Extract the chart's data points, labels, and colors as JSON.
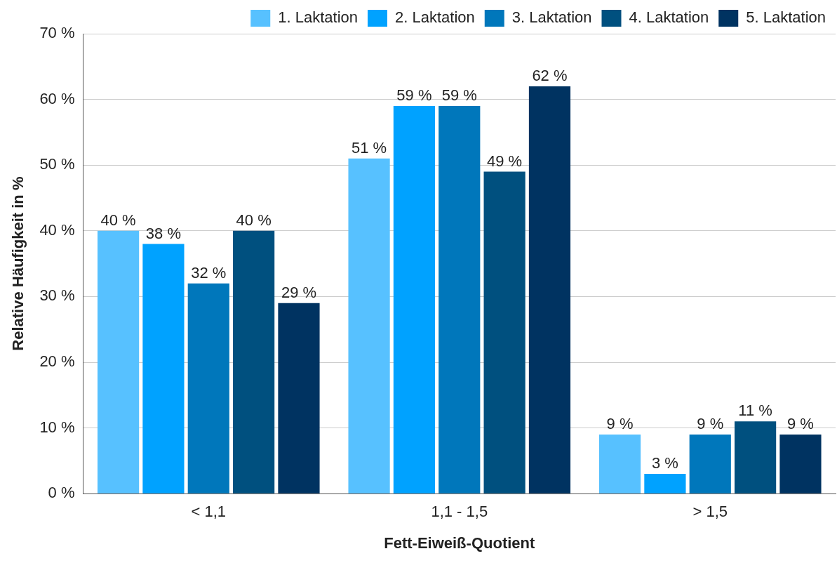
{
  "chart_data": {
    "type": "bar",
    "xlabel": "Fett-Eiweiß-Quotient",
    "ylabel": "Relative Häufigkeit in %",
    "categories": [
      "< 1,1",
      "1,1 - 1,5",
      "> 1,5"
    ],
    "series": [
      {
        "name": "1. Laktation",
        "color": "#57c1ff",
        "values": [
          40,
          51,
          9
        ],
        "value_labels": [
          "40 %",
          "51 %",
          "9 %"
        ]
      },
      {
        "name": "2. Laktation",
        "color": "#00a2ff",
        "values": [
          38,
          59,
          3
        ],
        "value_labels": [
          "38 %",
          "59 %",
          "3 %"
        ]
      },
      {
        "name": "3. Laktation",
        "color": "#0077bb",
        "values": [
          32,
          59,
          9
        ],
        "value_labels": [
          "32 %",
          "59 %",
          "9 %"
        ]
      },
      {
        "name": "4. Laktation",
        "color": "#00507f",
        "values": [
          40,
          49,
          11
        ],
        "value_labels": [
          "40 %",
          "49 %",
          "11 %"
        ]
      },
      {
        "name": "5. Laktation",
        "color": "#003361",
        "values": [
          29,
          62,
          9
        ],
        "value_labels": [
          "29 %",
          "62 %",
          "9 %"
        ]
      }
    ],
    "ylim": [
      0,
      70
    ],
    "yticks": [
      {
        "value": 0,
        "label": "0 %"
      },
      {
        "value": 10,
        "label": "10 %"
      },
      {
        "value": 20,
        "label": "20 %"
      },
      {
        "value": 30,
        "label": "30 %"
      },
      {
        "value": 40,
        "label": "40 %"
      },
      {
        "value": 50,
        "label": "50 %"
      },
      {
        "value": 60,
        "label": "60 %"
      },
      {
        "value": 70,
        "label": "70 %"
      }
    ],
    "grid": "y",
    "legend": "top right"
  }
}
